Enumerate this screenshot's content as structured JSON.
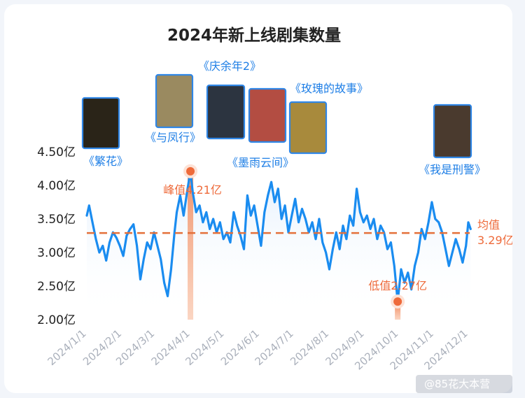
{
  "chart_data": {
    "type": "line",
    "title": "2024年新上线剧集数量",
    "xlabel": "",
    "ylabel": "",
    "ylim": [
      2.0,
      4.5
    ],
    "yticks": [
      "2.00亿",
      "2.50亿",
      "3.00亿",
      "3.50亿",
      "4.00亿",
      "4.50亿"
    ],
    "ytick_values": [
      2.0,
      2.5,
      3.0,
      3.5,
      4.0,
      4.5
    ],
    "xticks": [
      "2024/1/1",
      "2024/2/1",
      "2024/3/1",
      "2024/4/1",
      "2024/5/1",
      "2024/6/1",
      "2024/7/1",
      "2024/8/1",
      "2024/9/1",
      "2024/10/1",
      "2024/11/1",
      "2024/12/1"
    ],
    "xlim": [
      "2024-01-01",
      "2024-12-01"
    ],
    "series": [
      {
        "color": "#1a8cf0",
        "points": [
          [
            "2024-01-01",
            3.55
          ],
          [
            "2024-01-03",
            3.7
          ],
          [
            "2024-01-06",
            3.45
          ],
          [
            "2024-01-09",
            3.2
          ],
          [
            "2024-01-12",
            3.0
          ],
          [
            "2024-01-15",
            3.1
          ],
          [
            "2024-01-18",
            2.88
          ],
          [
            "2024-01-21",
            3.15
          ],
          [
            "2024-01-24",
            3.3
          ],
          [
            "2024-01-27",
            3.22
          ],
          [
            "2024-01-30",
            3.1
          ],
          [
            "2024-02-02",
            2.95
          ],
          [
            "2024-02-05",
            3.25
          ],
          [
            "2024-02-08",
            3.35
          ],
          [
            "2024-02-11",
            3.42
          ],
          [
            "2024-02-14",
            3.1
          ],
          [
            "2024-02-17",
            2.6
          ],
          [
            "2024-02-20",
            2.9
          ],
          [
            "2024-02-23",
            3.15
          ],
          [
            "2024-02-26",
            3.05
          ],
          [
            "2024-02-29",
            3.3
          ],
          [
            "2024-03-03",
            3.1
          ],
          [
            "2024-03-06",
            2.9
          ],
          [
            "2024-03-09",
            2.55
          ],
          [
            "2024-03-12",
            2.35
          ],
          [
            "2024-03-15",
            2.75
          ],
          [
            "2024-03-18",
            3.3
          ],
          [
            "2024-03-20",
            3.6
          ],
          [
            "2024-03-23",
            3.85
          ],
          [
            "2024-03-26",
            3.55
          ],
          [
            "2024-03-29",
            3.9
          ],
          [
            "2024-04-01",
            4.21
          ],
          [
            "2024-04-03",
            3.9
          ],
          [
            "2024-04-06",
            3.6
          ],
          [
            "2024-04-09",
            3.7
          ],
          [
            "2024-04-12",
            3.45
          ],
          [
            "2024-04-15",
            3.6
          ],
          [
            "2024-04-18",
            3.35
          ],
          [
            "2024-04-21",
            3.5
          ],
          [
            "2024-04-24",
            3.3
          ],
          [
            "2024-04-27",
            3.45
          ],
          [
            "2024-04-30",
            3.2
          ],
          [
            "2024-05-03",
            3.3
          ],
          [
            "2024-05-06",
            3.15
          ],
          [
            "2024-05-09",
            3.6
          ],
          [
            "2024-05-12",
            3.4
          ],
          [
            "2024-05-15",
            3.25
          ],
          [
            "2024-05-18",
            3.05
          ],
          [
            "2024-05-21",
            3.85
          ],
          [
            "2024-05-24",
            3.55
          ],
          [
            "2024-05-27",
            3.7
          ],
          [
            "2024-05-30",
            3.4
          ],
          [
            "2024-06-02",
            3.1
          ],
          [
            "2024-06-05",
            3.6
          ],
          [
            "2024-06-08",
            3.85
          ],
          [
            "2024-06-11",
            4.05
          ],
          [
            "2024-06-14",
            3.75
          ],
          [
            "2024-06-17",
            3.95
          ],
          [
            "2024-06-20",
            3.5
          ],
          [
            "2024-06-23",
            3.7
          ],
          [
            "2024-06-26",
            3.3
          ],
          [
            "2024-06-29",
            3.55
          ],
          [
            "2024-07-02",
            3.8
          ],
          [
            "2024-07-05",
            3.45
          ],
          [
            "2024-07-08",
            3.65
          ],
          [
            "2024-07-11",
            3.5
          ],
          [
            "2024-07-14",
            3.3
          ],
          [
            "2024-07-17",
            3.45
          ],
          [
            "2024-07-20",
            3.2
          ],
          [
            "2024-07-23",
            3.5
          ],
          [
            "2024-07-26",
            3.15
          ],
          [
            "2024-07-29",
            3.0
          ],
          [
            "2024-08-01",
            2.75
          ],
          [
            "2024-08-04",
            3.05
          ],
          [
            "2024-08-07",
            3.3
          ],
          [
            "2024-08-10",
            3.05
          ],
          [
            "2024-08-13",
            3.4
          ],
          [
            "2024-08-16",
            3.2
          ],
          [
            "2024-08-19",
            3.55
          ],
          [
            "2024-08-22",
            3.4
          ],
          [
            "2024-08-25",
            3.95
          ],
          [
            "2024-08-28",
            3.6
          ],
          [
            "2024-08-31",
            3.45
          ],
          [
            "2024-09-03",
            3.55
          ],
          [
            "2024-09-06",
            3.35
          ],
          [
            "2024-09-09",
            3.5
          ],
          [
            "2024-09-12",
            3.2
          ],
          [
            "2024-09-15",
            3.4
          ],
          [
            "2024-09-18",
            3.3
          ],
          [
            "2024-09-21",
            3.05
          ],
          [
            "2024-09-24",
            3.15
          ],
          [
            "2024-09-27",
            2.8
          ],
          [
            "2024-09-30",
            2.27
          ],
          [
            "2024-10-03",
            2.75
          ],
          [
            "2024-10-06",
            2.55
          ],
          [
            "2024-10-09",
            2.7
          ],
          [
            "2024-10-12",
            2.45
          ],
          [
            "2024-10-15",
            2.8
          ],
          [
            "2024-10-18",
            3.0
          ],
          [
            "2024-10-21",
            3.35
          ],
          [
            "2024-10-24",
            3.2
          ],
          [
            "2024-10-27",
            3.45
          ],
          [
            "2024-10-30",
            3.75
          ],
          [
            "2024-11-02",
            3.5
          ],
          [
            "2024-11-05",
            3.45
          ],
          [
            "2024-11-08",
            3.3
          ],
          [
            "2024-11-11",
            3.05
          ],
          [
            "2024-11-14",
            2.8
          ],
          [
            "2024-11-17",
            3.0
          ],
          [
            "2024-11-20",
            3.2
          ],
          [
            "2024-11-23",
            3.05
          ],
          [
            "2024-11-26",
            2.85
          ],
          [
            "2024-11-29",
            3.1
          ],
          [
            "2024-12-01",
            3.45
          ],
          [
            "2024-12-03",
            3.35
          ]
        ]
      }
    ],
    "average": {
      "value": 3.29,
      "label": [
        "均值",
        "3.29亿"
      ],
      "color": "#e4703a"
    },
    "peak": {
      "x": "2024-04-01",
      "y": 4.21,
      "label": "峰值4.21亿",
      "color": "#ee6a3a"
    },
    "trough": {
      "x": "2024-09-30",
      "y": 2.27,
      "label": "低值2.27亿",
      "color": "#ee6a3a"
    },
    "annotations": [
      {
        "text": "《繁花》",
        "x": "2024-01-01"
      },
      {
        "text": "《与凤行》",
        "x": "2024-03-18"
      },
      {
        "text": "《庆余年2》",
        "x": "2024-05-20"
      },
      {
        "text": "《墨雨云间》",
        "x": "2024-06-08"
      },
      {
        "text": "《玫瑰的故事》",
        "x": "2024-06-28"
      },
      {
        "text": "《我是刑警》",
        "x": "2024-11-28"
      }
    ],
    "grid": false,
    "legend": "none"
  },
  "watermark": "@85花大本营"
}
